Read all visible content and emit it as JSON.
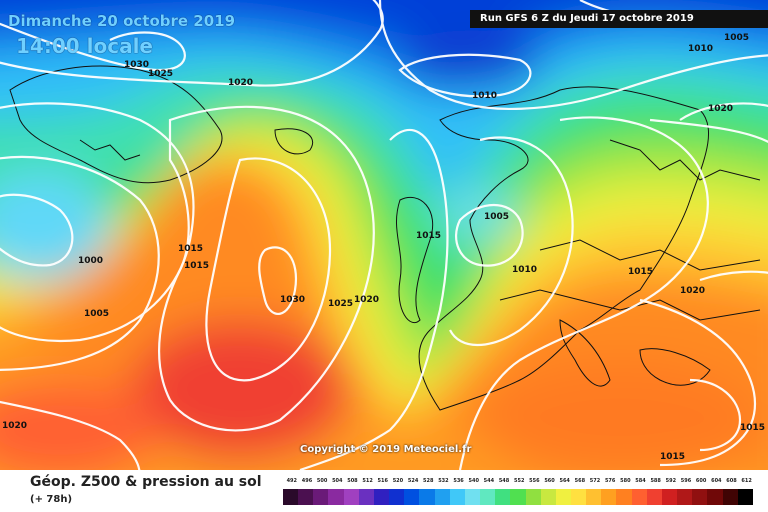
{
  "header": {
    "date": "Dimanche 20 octobre 2019",
    "time": "14:00 locale",
    "run": "Run GFS 6 Z du Jeudi 17 octobre 2019"
  },
  "copyright": "Copyright © 2019 Meteociel.fr",
  "footer": {
    "product": "Géop. Z500 & pression au sol",
    "lead": "(+ 78h)"
  },
  "isobar_labels": [
    "1030",
    "1025",
    "1020",
    "1010",
    "1010",
    "1005",
    "1020",
    "1005",
    "1015",
    "1000",
    "1015",
    "1015",
    "1005",
    "1030",
    "1025",
    "1020",
    "1010",
    "1015",
    "1020",
    "1020",
    "1015",
    "1015"
  ],
  "legend": {
    "values": [
      "492",
      "496",
      "500",
      "504",
      "508",
      "512",
      "516",
      "520",
      "524",
      "528",
      "532",
      "536",
      "540",
      "544",
      "548",
      "552",
      "556",
      "560",
      "564",
      "568",
      "572",
      "576",
      "580",
      "584",
      "588",
      "592",
      "596",
      "600",
      "604",
      "608",
      "612"
    ],
    "colors": [
      "#2a0a2a",
      "#4b1050",
      "#6a1a78",
      "#8a2aa0",
      "#a040c0",
      "#6a30c0",
      "#3020c0",
      "#1030d0",
      "#0050e0",
      "#0a7ae8",
      "#20a0f0",
      "#40c8f8",
      "#70e0f0",
      "#60e8c0",
      "#40e080",
      "#50e050",
      "#90e040",
      "#c8e840",
      "#f0f040",
      "#ffe040",
      "#ffc030",
      "#ffa020",
      "#ff8020",
      "#ff6030",
      "#f04030",
      "#d02020",
      "#b01818",
      "#901010",
      "#700808",
      "#400404",
      "#000000"
    ]
  }
}
